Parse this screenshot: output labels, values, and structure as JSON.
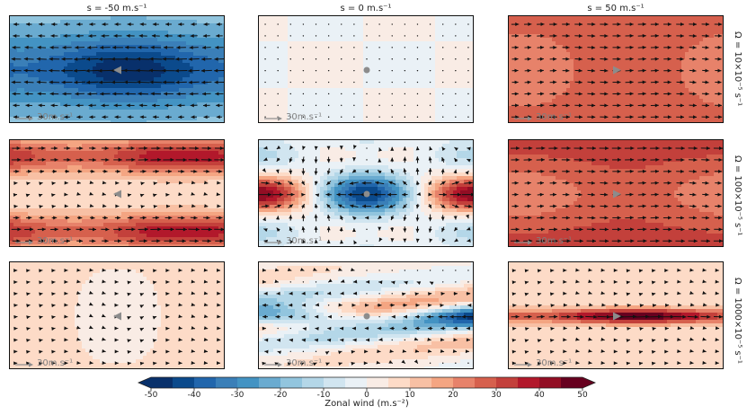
{
  "chart_data": {
    "type": "heatmap",
    "title": "",
    "columns": [
      {
        "label": "s = -50 m.s⁻¹",
        "s": -50
      },
      {
        "label": "s = 0 m.s⁻¹",
        "s": 0
      },
      {
        "label": "s = 50 m.s⁻¹",
        "s": 50
      }
    ],
    "rows": [
      {
        "label": "Ω = 10×10⁻⁵ s⁻¹",
        "omega": 10
      },
      {
        "label": "Ω = 100×10⁻⁵ s⁻¹",
        "omega": 100
      },
      {
        "label": "Ω = 1000×10⁻⁵ s⁻¹",
        "omega": 1000
      }
    ],
    "panels": [
      {
        "row": 0,
        "col": 0,
        "pattern": "uniform-jets",
        "base": -15,
        "amp": -45,
        "jet_lats": [
          0.5
        ],
        "jet_width": 0.22,
        "marker": "triangle-left",
        "reference_label": "30m.s⁻¹"
      },
      {
        "row": 0,
        "col": 1,
        "pattern": "calm",
        "base": 0,
        "amp": 3,
        "marker": "circle",
        "reference_label": "30m.s⁻¹"
      },
      {
        "row": 0,
        "col": 2,
        "pattern": "uniform-jets",
        "base": 25,
        "amp": 22,
        "jet_lats": [
          0.5
        ],
        "jet_width": 0.3,
        "marker": "triangle-right",
        "reference_label": "30m.s⁻¹"
      },
      {
        "row": 1,
        "col": 0,
        "pattern": "twin-jets",
        "base": 10,
        "amp": 35,
        "jet_lats": [
          0.15,
          0.85
        ],
        "jet_width": 0.12,
        "marker": "triangle-left",
        "reference_label": "30m.s⁻¹"
      },
      {
        "row": 1,
        "col": 1,
        "pattern": "wave",
        "base": 0,
        "amp": 45,
        "marker": "circle",
        "reference_label": "30m.s⁻¹"
      },
      {
        "row": 1,
        "col": 2,
        "pattern": "uniform-jets",
        "base": 30,
        "amp": 20,
        "jet_lats": [
          0.5
        ],
        "jet_width": 0.25,
        "marker": "triangle-right",
        "reference_label": "30m.s⁻¹"
      },
      {
        "row": 2,
        "col": 0,
        "pattern": "weak",
        "base": 6,
        "amp": 3,
        "jet_lats": [
          0.5
        ],
        "jet_width": 0.3,
        "marker": "triangle-left",
        "reference_label": "30m.s⁻¹"
      },
      {
        "row": 2,
        "col": 1,
        "pattern": "equatorial-cross",
        "base": 2,
        "amp": 35,
        "marker": "circle",
        "reference_label": "30m.s⁻¹"
      },
      {
        "row": 2,
        "col": 2,
        "pattern": "equatorial-jet",
        "base": 5,
        "amp": 45,
        "jet_lats": [
          0.5
        ],
        "jet_width": 0.05,
        "marker": "triangle-right",
        "reference_label": "30m.s⁻¹"
      }
    ],
    "colorbar": {
      "label": "Zonal wind (m.s⁻²)",
      "vmin": -50,
      "vmax": 50,
      "step": 5,
      "ticks": [
        -50,
        -40,
        -30,
        -20,
        -10,
        0,
        10,
        20,
        30,
        40,
        50
      ],
      "colors": [
        "#08306b",
        "#0b4a8c",
        "#2166ac",
        "#3a7fb8",
        "#4393c3",
        "#6aabd0",
        "#92c5de",
        "#b4d7e8",
        "#d1e5f0",
        "#eaf1f6",
        "#f9ece5",
        "#fddbc7",
        "#f8c0a4",
        "#f4a582",
        "#e7826a",
        "#d6604d",
        "#c3403b",
        "#b2182b",
        "#920e24",
        "#67001f"
      ]
    }
  }
}
